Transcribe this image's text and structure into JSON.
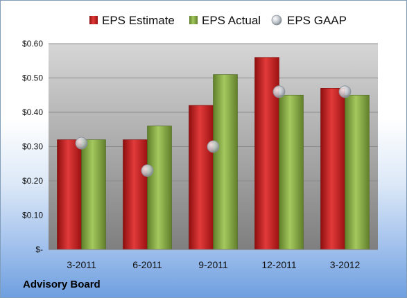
{
  "company": "Advisory Board",
  "colors": {
    "estimate": "#cc1f1f",
    "actual": "#8db04a",
    "gaap": "#b9c0c8",
    "plot_bg_top": "#d6d6d6",
    "plot_bg_bottom": "#7f7f7f"
  },
  "chart_data": {
    "type": "bar",
    "categories": [
      "3-2011",
      "6-2011",
      "9-2011",
      "12-2011",
      "3-2012"
    ],
    "series": [
      {
        "name": "EPS Estimate",
        "kind": "bar",
        "values": [
          0.32,
          0.32,
          0.42,
          0.56,
          0.47
        ]
      },
      {
        "name": "EPS Actual",
        "kind": "bar",
        "values": [
          0.32,
          0.36,
          0.51,
          0.45,
          0.45
        ]
      },
      {
        "name": "EPS GAAP",
        "kind": "marker",
        "values": [
          0.31,
          0.23,
          0.3,
          0.46,
          0.46
        ]
      }
    ],
    "y_ticks": [
      {
        "value": 0,
        "label": "$-"
      },
      {
        "value": 0.1,
        "label": "$0.10"
      },
      {
        "value": 0.2,
        "label": "$0.20"
      },
      {
        "value": 0.3,
        "label": "$0.30"
      },
      {
        "value": 0.4,
        "label": "$0.40"
      },
      {
        "value": 0.5,
        "label": "$0.50"
      },
      {
        "value": 0.6,
        "label": "$0.60"
      }
    ],
    "ylim": [
      0,
      0.6
    ],
    "grid": true,
    "legend_position": "top"
  }
}
